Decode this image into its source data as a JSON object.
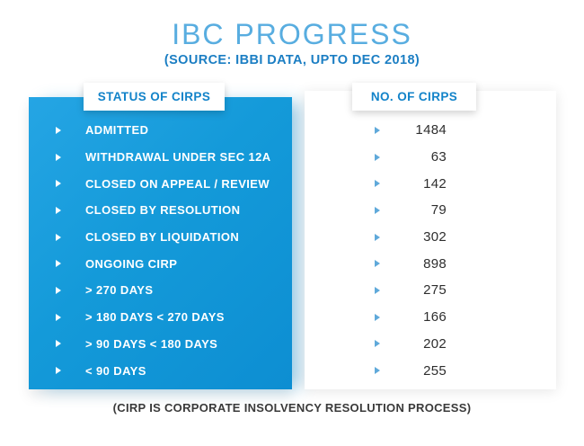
{
  "title": "IBC PROGRESS",
  "subtitle": "(SOURCE: IBBI DATA, UPTO DEC 2018)",
  "columns": {
    "status_header": "STATUS OF CIRPS",
    "count_header": "NO. OF CIRPS"
  },
  "rows": [
    {
      "label": "ADMITTED",
      "value": "1484"
    },
    {
      "label": "WITHDRAWAL UNDER SEC 12A",
      "value": "63"
    },
    {
      "label": "CLOSED ON APPEAL / REVIEW",
      "value": "142"
    },
    {
      "label": "CLOSED BY RESOLUTION",
      "value": "79"
    },
    {
      "label": "CLOSED BY LIQUIDATION",
      "value": "302"
    },
    {
      "label": "ONGOING CIRP",
      "value": "898"
    },
    {
      "label": "> 270 DAYS",
      "value": "275"
    },
    {
      "label": "> 180 DAYS < 270 DAYS",
      "value": "166"
    },
    {
      "label": "> 90 DAYS < 180 DAYS",
      "value": "202"
    },
    {
      "label": "< 90 DAYS",
      "value": "255"
    }
  ],
  "footer": "(CIRP IS CORPORATE INSOLVENCY RESOLUTION PROCESS)",
  "colors": {
    "panel_blue_top": "#25a5e4",
    "panel_blue_bottom": "#0d8ed2",
    "title_blue": "#58ade0",
    "subtitle_blue": "#1b7ec3",
    "header_label_blue": "#1283c9",
    "value_text": "#2e2e2e",
    "right_arrow_blue": "#5fa9da"
  },
  "chart_data": {
    "type": "table",
    "title": "IBC PROGRESS",
    "subtitle": "(SOURCE: IBBI DATA, UPTO DEC 2018)",
    "columns": [
      "STATUS OF CIRPS",
      "NO. OF CIRPS"
    ],
    "categories": [
      "ADMITTED",
      "WITHDRAWAL UNDER SEC 12A",
      "CLOSED ON APPEAL / REVIEW",
      "CLOSED BY RESOLUTION",
      "CLOSED BY LIQUIDATION",
      "ONGOING CIRP",
      "> 270 DAYS",
      "> 180 DAYS < 270 DAYS",
      "> 90 DAYS < 180 DAYS",
      "< 90 DAYS"
    ],
    "values": [
      1484,
      63,
      142,
      79,
      302,
      898,
      275,
      166,
      202,
      255
    ],
    "note": "(CIRP IS CORPORATE INSOLVENCY RESOLUTION PROCESS)"
  }
}
